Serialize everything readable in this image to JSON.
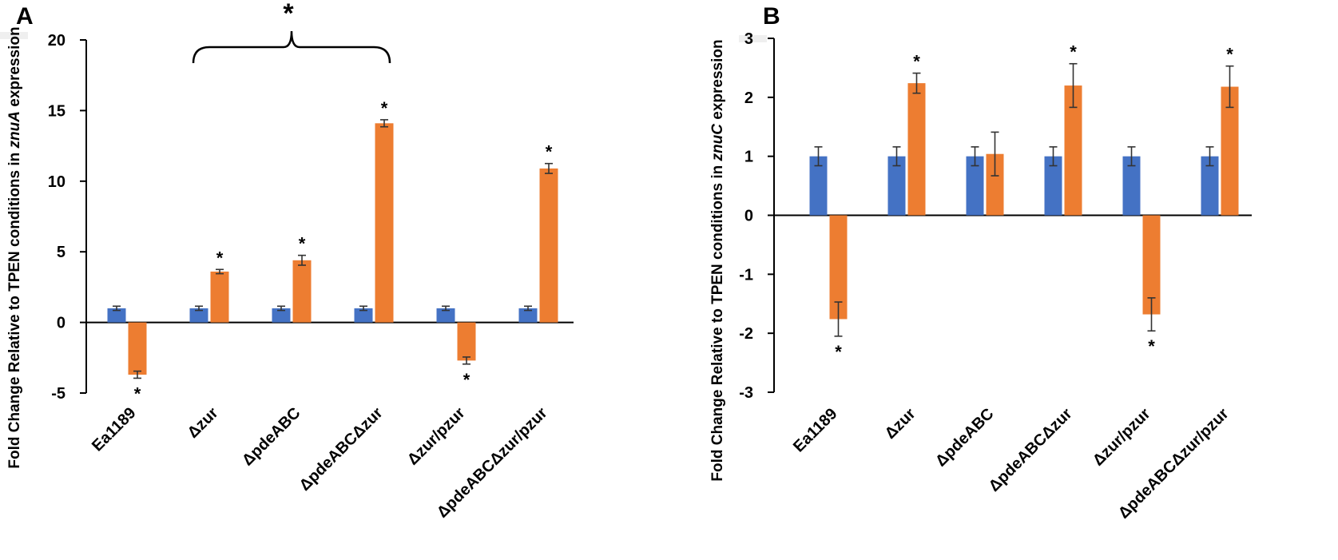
{
  "colors": {
    "series1": "#4472c4",
    "series2": "#ed7d31"
  },
  "chart_data": [
    {
      "type": "bar",
      "panel": "A",
      "ylabel": "Fold Change Relative to TPEN conditions in znuA expression",
      "ylabel_parts": [
        "Fold Change Relative to TPEN conditions in ",
        "znuA",
        " expression"
      ],
      "ylim": [
        -5,
        20
      ],
      "yticks": [
        -5,
        0,
        5,
        10,
        15,
        20
      ],
      "categories": [
        "Ea1189",
        "Δzur",
        "ΔpdeABC",
        "ΔpdeABCΔzur",
        "Δzur/pzur",
        "ΔpdeABCΔzur/pzur"
      ],
      "series": [
        {
          "name": "series-1",
          "values": [
            1,
            1,
            1,
            1,
            1,
            1
          ],
          "errors": [
            0.15,
            0.15,
            0.15,
            0.15,
            0.15,
            0.15
          ],
          "stars": [
            "",
            "",
            "",
            "",
            "",
            ""
          ]
        },
        {
          "name": "series-2",
          "values": [
            -3.7,
            3.6,
            4.4,
            14.1,
            -2.7,
            10.9
          ],
          "errors": [
            0.25,
            0.15,
            0.35,
            0.25,
            0.25,
            0.35
          ],
          "stars": [
            "*",
            "*",
            "*",
            "*",
            "*",
            "*"
          ]
        }
      ],
      "bracket": {
        "from": "Δzur",
        "to": "ΔpdeABCΔzur",
        "label": "*"
      }
    },
    {
      "type": "bar",
      "panel": "B",
      "ylabel": "Fold Change Relative to TPEN conditions in znuC expression",
      "ylabel_parts": [
        "Fold Change Relative to TPEN conditions in ",
        "znuC",
        " expression"
      ],
      "ylim": [
        -3,
        3
      ],
      "yticks": [
        -3,
        -2,
        -1,
        0,
        1,
        2,
        3
      ],
      "categories": [
        "Ea1189",
        "Δzur",
        "ΔpdeABC",
        "ΔpdeABCΔzur",
        "Δzur/pzur",
        "ΔpdeABCΔzur/pzur"
      ],
      "series": [
        {
          "name": "series-1",
          "values": [
            1,
            1,
            1,
            1,
            1,
            1
          ],
          "errors": [
            0.16,
            0.16,
            0.16,
            0.16,
            0.16,
            0.16
          ],
          "stars": [
            "",
            "",
            "",
            "",
            "",
            ""
          ]
        },
        {
          "name": "series-2",
          "values": [
            -1.76,
            2.24,
            1.04,
            2.2,
            -1.68,
            2.18
          ],
          "errors": [
            0.29,
            0.17,
            0.37,
            0.37,
            0.28,
            0.35
          ],
          "stars": [
            "*",
            "*",
            "",
            "*",
            "*",
            "*"
          ]
        }
      ]
    }
  ]
}
